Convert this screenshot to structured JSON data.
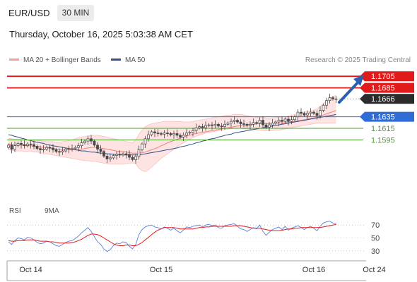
{
  "header": {
    "symbol": "EUR/USD",
    "timeframe": "30 MIN",
    "timestamp": "Thursday, October 16, 2025 5:03:38 AM CET"
  },
  "legend": {
    "ma20_label": "MA 20 + Bollinger Bands",
    "ma50_label": "MA 50",
    "credit": "Research © 2025 Trading Central",
    "ma20_color": "#f08080",
    "ma50_color": "#34508c"
  },
  "chart_data": {
    "type": "candlestick",
    "price_scale": {
      "min": 1.152,
      "max": 1.1715
    },
    "levels": [
      {
        "label": "1.1705",
        "value": 1.1705,
        "kind": "resistance",
        "color": "#e01b1b"
      },
      {
        "label": "1.1685",
        "value": 1.1685,
        "kind": "resistance",
        "color": "#e01b1b"
      },
      {
        "label": "1.1666",
        "value": 1.1666,
        "kind": "last",
        "color": "#2b2b2b"
      },
      {
        "label": "1.1635",
        "value": 1.1635,
        "kind": "pivot",
        "color": "#2f6cd6"
      },
      {
        "label": "1.1615",
        "value": 1.1615,
        "kind": "support",
        "color": "#4a9a2e"
      },
      {
        "label": "1.1595",
        "value": 1.1595,
        "kind": "support",
        "color": "#4a9a2e"
      }
    ],
    "closes": [
      1.1586,
      1.1579,
      1.1585,
      1.1589,
      1.1587,
      1.1585,
      1.1588,
      1.1587,
      1.1584,
      1.158,
      1.1578,
      1.1579,
      1.1582,
      1.1581,
      1.1578,
      1.1575,
      1.1574,
      1.1576,
      1.1579,
      1.158,
      1.158,
      1.1582,
      1.1585,
      1.159,
      1.1593,
      1.1597,
      1.1593,
      1.1586,
      1.1579,
      1.1575,
      1.1567,
      1.1562,
      1.1564,
      1.1568,
      1.157,
      1.1569,
      1.1571,
      1.157,
      1.1565,
      1.1561,
      1.1566,
      1.1578,
      1.1588,
      1.1597,
      1.1604,
      1.1609,
      1.1607,
      1.1606,
      1.1605,
      1.1607,
      1.1606,
      1.1604,
      1.1606,
      1.1603,
      1.16,
      1.1603,
      1.1607,
      1.1608,
      1.1611,
      1.1616,
      1.1618,
      1.1616,
      1.162,
      1.1621,
      1.162,
      1.1622,
      1.1619,
      1.1618,
      1.1622,
      1.1624,
      1.1627,
      1.1629,
      1.1626,
      1.1623,
      1.1622,
      1.162,
      1.1622,
      1.1625,
      1.1624,
      1.1629,
      1.1621,
      1.1617,
      1.1621,
      1.1624,
      1.1626,
      1.1629,
      1.1627,
      1.1631,
      1.1627,
      1.163,
      1.1635,
      1.1643,
      1.1641,
      1.1638,
      1.1641,
      1.1643,
      1.1641,
      1.1637,
      1.1646,
      1.1655,
      1.1663,
      1.1668,
      1.1666,
      1.1666
    ],
    "ma20": [
      1.1588,
      1.1587,
      1.1586,
      1.1586,
      1.1586,
      1.1585,
      1.1585,
      1.1585,
      1.1584,
      1.1584,
      1.1583,
      1.1582,
      1.1582,
      1.1581,
      1.158,
      1.1579,
      1.1579,
      1.1578,
      1.1578,
      1.1578,
      1.1578,
      1.1578,
      1.1578,
      1.1579,
      1.158,
      1.1581,
      1.1582,
      1.1582,
      1.1582,
      1.1581,
      1.158,
      1.1579,
      1.1578,
      1.1577,
      1.1576,
      1.1575,
      1.1575,
      1.1574,
      1.1573,
      1.1572,
      1.1572,
      1.1572,
      1.1573,
      1.1574,
      1.1576,
      1.1578,
      1.158,
      1.1582,
      1.1585,
      1.1587,
      1.159,
      1.1592,
      1.1594,
      1.1596,
      1.1598,
      1.16,
      1.1602,
      1.1603,
      1.1605,
      1.1606,
      1.1607,
      1.1608,
      1.1609,
      1.161,
      1.1611,
      1.1612,
      1.1613,
      1.1614,
      1.1615,
      1.1616,
      1.1617,
      1.1618,
      1.1619,
      1.162,
      1.162,
      1.1621,
      1.1622,
      1.1622,
      1.1623,
      1.1623,
      1.1623,
      1.1623,
      1.1623,
      1.1623,
      1.1624,
      1.1624,
      1.1624,
      1.1625,
      1.1625,
      1.1626,
      1.1627,
      1.1628,
      1.1629,
      1.163,
      1.1631,
      1.1632,
      1.1633,
      1.1634,
      1.1636,
      1.1638,
      1.164,
      1.1642,
      1.1644,
      1.1646
    ],
    "bb_upper": [
      1.1598,
      1.1597,
      1.1596,
      1.1596,
      1.1596,
      1.1596,
      1.1595,
      1.1595,
      1.1595,
      1.1594,
      1.1594,
      1.1593,
      1.1592,
      1.1592,
      1.1592,
      1.1591,
      1.1591,
      1.1592,
      1.1593,
      1.1594,
      1.1595,
      1.1597,
      1.1599,
      1.16,
      1.1601,
      1.1602,
      1.1603,
      1.1603,
      1.1603,
      1.1602,
      1.1601,
      1.16,
      1.1598,
      1.1597,
      1.1596,
      1.1595,
      1.1594,
      1.1592,
      1.1591,
      1.159,
      1.1595,
      1.1605,
      1.1612,
      1.1618,
      1.1621,
      1.1623,
      1.1624,
      1.1625,
      1.1626,
      1.1627,
      1.1627,
      1.1627,
      1.1627,
      1.1627,
      1.1627,
      1.1626,
      1.1626,
      1.1626,
      1.1627,
      1.1628,
      1.1629,
      1.163,
      1.1631,
      1.1632,
      1.1633,
      1.1634,
      1.1635,
      1.1636,
      1.1637,
      1.1638,
      1.1638,
      1.1639,
      1.1639,
      1.1639,
      1.1638,
      1.1637,
      1.1636,
      1.1635,
      1.1634,
      1.1634,
      1.1634,
      1.1633,
      1.1633,
      1.1633,
      1.1634,
      1.1634,
      1.1635,
      1.1635,
      1.1636,
      1.1637,
      1.1639,
      1.1641,
      1.1642,
      1.1643,
      1.1644,
      1.1645,
      1.1647,
      1.1649,
      1.1653,
      1.1658,
      1.1663,
      1.1667,
      1.167,
      1.1672
    ],
    "bb_lower": [
      1.1578,
      1.1577,
      1.1576,
      1.1576,
      1.1576,
      1.1575,
      1.1575,
      1.1575,
      1.1574,
      1.1574,
      1.1573,
      1.1571,
      1.1571,
      1.157,
      1.1569,
      1.1568,
      1.1567,
      1.1566,
      1.1565,
      1.1564,
      1.1563,
      1.1562,
      1.1561,
      1.156,
      1.1559,
      1.1559,
      1.1558,
      1.1558,
      1.1557,
      1.1556,
      1.1555,
      1.1554,
      1.1553,
      1.1553,
      1.1553,
      1.1553,
      1.1553,
      1.1554,
      1.1555,
      1.1555,
      1.1554,
      1.1546,
      1.1542,
      1.154,
      1.1543,
      1.1548,
      1.1553,
      1.1558,
      1.1563,
      1.1567,
      1.1571,
      1.1575,
      1.1579,
      1.1583,
      1.1587,
      1.159,
      1.1593,
      1.1596,
      1.1599,
      1.1601,
      1.1603,
      1.1605,
      1.1607,
      1.1608,
      1.1609,
      1.161,
      1.1611,
      1.1612,
      1.1613,
      1.1614,
      1.1614,
      1.1615,
      1.1615,
      1.1615,
      1.1614,
      1.1614,
      1.1613,
      1.1613,
      1.1612,
      1.1612,
      1.1611,
      1.1611,
      1.1611,
      1.1611,
      1.1612,
      1.1612,
      1.1613,
      1.1614,
      1.1615,
      1.1616,
      1.1617,
      1.1618,
      1.1619,
      1.162,
      1.1621,
      1.1622,
      1.1623,
      1.1624,
      1.1624,
      1.1624,
      1.1624,
      1.1624,
      1.1624,
      1.1624
    ],
    "ma50": [
      1.1604,
      1.1603,
      1.1601,
      1.16,
      1.1598,
      1.1597,
      1.1595,
      1.1594,
      1.1592,
      1.1591,
      1.159,
      1.1589,
      1.1587,
      1.1586,
      1.1585,
      1.1584,
      1.1583,
      1.1582,
      1.1581,
      1.158,
      1.1579,
      1.1578,
      1.1577,
      1.1576,
      1.1576,
      1.1575,
      1.1574,
      1.1574,
      1.1573,
      1.1572,
      1.1572,
      1.1571,
      1.1571,
      1.157,
      1.157,
      1.157,
      1.1569,
      1.1569,
      1.1569,
      1.1569,
      1.1569,
      1.1569,
      1.157,
      1.1571,
      1.1572,
      1.1573,
      1.1574,
      1.1575,
      1.1576,
      1.1577,
      1.1578,
      1.1579,
      1.158,
      1.1581,
      1.1583,
      1.1584,
      1.1585,
      1.1587,
      1.1588,
      1.159,
      1.1591,
      1.1593,
      1.1594,
      1.1596,
      1.1597,
      1.1598,
      1.16,
      1.1601,
      1.1603,
      1.1604,
      1.1605,
      1.1607,
      1.1608,
      1.1609,
      1.161,
      1.1611,
      1.1612,
      1.1613,
      1.1614,
      1.1615,
      1.1616,
      1.1617,
      1.1618,
      1.1619,
      1.162,
      1.1621,
      1.1622,
      1.1623,
      1.1624,
      1.1625,
      1.1626,
      1.1627,
      1.1628,
      1.1629,
      1.163,
      1.1631,
      1.1632,
      1.1633,
      1.1634,
      1.1635,
      1.1636,
      1.1637,
      1.1638,
      1.1639
    ],
    "rsi": {
      "label": "RSI",
      "ma_label": "9MA",
      "color": "#5a7fe0",
      "ma_color": "#e01b1b",
      "levels": [
        70,
        50,
        30
      ],
      "scale": [
        20,
        80
      ],
      "values": [
        44,
        40,
        46,
        50,
        49,
        47,
        51,
        50,
        47,
        43,
        41,
        42,
        45,
        44,
        41,
        38,
        37,
        40,
        43,
        45,
        46,
        49,
        53,
        58,
        62,
        66,
        60,
        52,
        44,
        40,
        33,
        29,
        32,
        38,
        42,
        41,
        44,
        43,
        37,
        33,
        40,
        55,
        63,
        67,
        69,
        70,
        67,
        66,
        64,
        67,
        65,
        62,
        65,
        61,
        58,
        62,
        67,
        66,
        68,
        69,
        70,
        67,
        70,
        71,
        69,
        70,
        66,
        65,
        69,
        70,
        71,
        72,
        68,
        64,
        63,
        60,
        63,
        66,
        64,
        70,
        60,
        54,
        59,
        63,
        65,
        67,
        63,
        68,
        62,
        65,
        67,
        69,
        66,
        63,
        66,
        68,
        65,
        61,
        68,
        73,
        75,
        76,
        73,
        72
      ],
      "ma_values": [
        46,
        45,
        45,
        46,
        46,
        46,
        47,
        47,
        47,
        46,
        45,
        45,
        45,
        44,
        44,
        43,
        42,
        42,
        42,
        42,
        43,
        44,
        46,
        48,
        51,
        54,
        56,
        56,
        55,
        53,
        50,
        47,
        44,
        41,
        39,
        38,
        38,
        39,
        39,
        38,
        38,
        40,
        43,
        47,
        51,
        55,
        59,
        62,
        64,
        66,
        66,
        66,
        66,
        65,
        64,
        64,
        64,
        64,
        64,
        65,
        66,
        66,
        67,
        67,
        68,
        68,
        68,
        68,
        68,
        68,
        68,
        69,
        69,
        69,
        68,
        67,
        66,
        65,
        65,
        65,
        64,
        63,
        62,
        61,
        61,
        61,
        62,
        63,
        64,
        64,
        65,
        65,
        66,
        66,
        66,
        66,
        66,
        66,
        66,
        67,
        68,
        69,
        70,
        71
      ]
    },
    "x_labels": [
      {
        "label": "Oct 14",
        "index": 7
      },
      {
        "label": "Oct 15",
        "index": 48
      },
      {
        "label": "Oct 16",
        "index": 96
      },
      {
        "label": "Oct 24",
        "index": 115
      }
    ]
  }
}
